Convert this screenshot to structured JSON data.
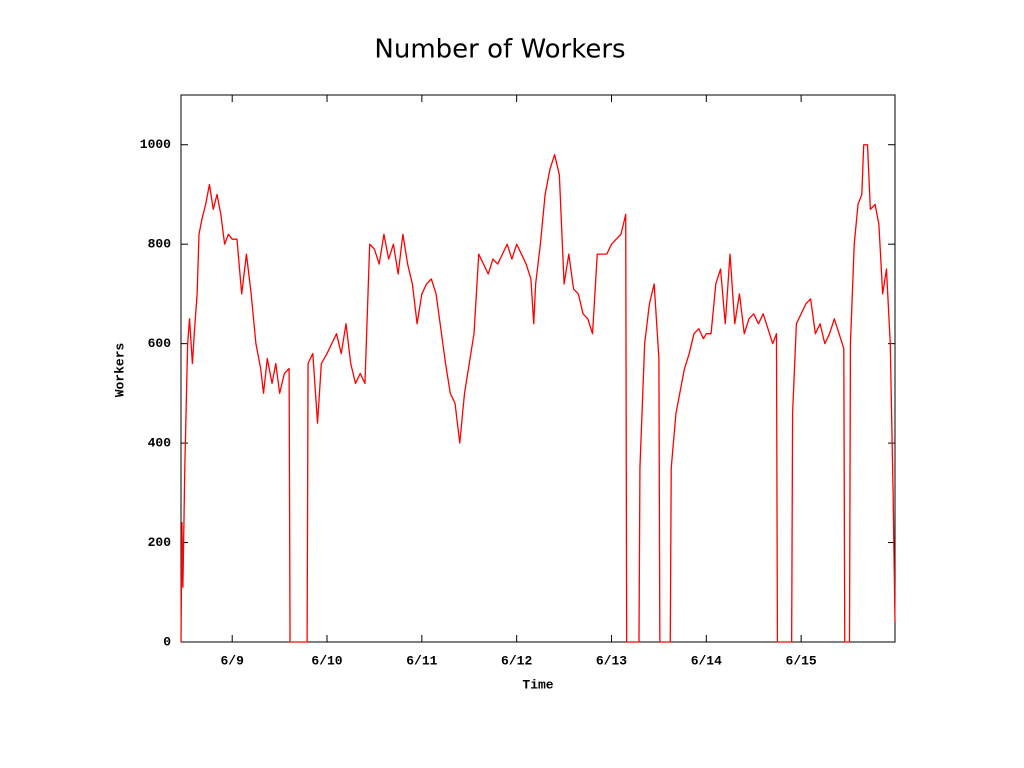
{
  "chart_data": {
    "type": "line",
    "title": "Number of Workers",
    "x_label": "Time",
    "y_label": "Workers",
    "color": "#ff0000",
    "x": [
      8.46,
      8.47,
      8.48,
      8.5,
      8.53,
      8.55,
      8.58,
      8.6,
      8.63,
      8.65,
      8.68,
      8.72,
      8.76,
      8.8,
      8.84,
      8.88,
      8.92,
      8.96,
      9.0,
      9.05,
      9.1,
      9.15,
      9.2,
      9.25,
      9.3,
      9.33,
      9.37,
      9.42,
      9.46,
      9.5,
      9.55,
      9.6,
      9.61,
      9.79,
      9.8,
      9.85,
      9.9,
      9.94,
      10.0,
      10.05,
      10.1,
      10.15,
      10.2,
      10.25,
      10.3,
      10.35,
      10.4,
      10.45,
      10.5,
      10.55,
      10.6,
      10.65,
      10.7,
      10.75,
      10.8,
      10.85,
      10.9,
      10.95,
      11.0,
      11.05,
      11.1,
      11.15,
      11.2,
      11.25,
      11.3,
      11.35,
      11.4,
      11.45,
      11.5,
      11.55,
      11.6,
      11.65,
      11.7,
      11.75,
      11.8,
      11.85,
      11.9,
      11.95,
      12.0,
      12.05,
      12.1,
      12.15,
      12.18,
      12.2,
      12.25,
      12.3,
      12.35,
      12.4,
      12.45,
      12.5,
      12.55,
      12.6,
      12.65,
      12.7,
      12.75,
      12.8,
      12.85,
      12.9,
      12.95,
      13.0,
      13.05,
      13.1,
      13.15,
      13.16,
      13.29,
      13.3,
      13.35,
      13.4,
      13.45,
      13.5,
      13.51,
      13.62,
      13.63,
      13.68,
      13.72,
      13.77,
      13.82,
      13.87,
      13.92,
      13.97,
      14.0,
      14.05,
      14.1,
      14.15,
      14.2,
      14.25,
      14.3,
      14.35,
      14.4,
      14.45,
      14.5,
      14.55,
      14.6,
      14.65,
      14.7,
      14.74,
      14.75,
      14.9,
      14.91,
      14.95,
      15.0,
      15.05,
      15.1,
      15.15,
      15.2,
      15.25,
      15.3,
      15.35,
      15.4,
      15.45,
      15.46,
      15.51,
      15.52,
      15.56,
      15.6,
      15.64,
      15.66,
      15.7,
      15.73,
      15.78,
      15.82,
      15.86,
      15.9,
      15.94,
      15.97,
      15.99
    ],
    "values": [
      0,
      240,
      110,
      350,
      600,
      650,
      560,
      620,
      700,
      820,
      850,
      880,
      920,
      870,
      900,
      860,
      800,
      820,
      810,
      810,
      700,
      780,
      700,
      600,
      550,
      500,
      570,
      520,
      560,
      500,
      540,
      550,
      0,
      0,
      560,
      580,
      440,
      560,
      580,
      600,
      620,
      580,
      640,
      560,
      520,
      540,
      520,
      800,
      790,
      760,
      820,
      770,
      800,
      740,
      820,
      760,
      720,
      640,
      700,
      720,
      730,
      700,
      630,
      560,
      500,
      480,
      400,
      500,
      560,
      620,
      780,
      760,
      740,
      770,
      760,
      780,
      800,
      770,
      800,
      780,
      760,
      730,
      640,
      720,
      800,
      900,
      950,
      980,
      940,
      720,
      780,
      710,
      700,
      660,
      650,
      620,
      780,
      780,
      780,
      800,
      810,
      820,
      860,
      0,
      0,
      350,
      600,
      680,
      720,
      570,
      0,
      0,
      350,
      460,
      500,
      550,
      580,
      620,
      630,
      610,
      620,
      620,
      720,
      750,
      640,
      780,
      640,
      700,
      620,
      650,
      660,
      640,
      660,
      630,
      600,
      620,
      0,
      0,
      460,
      640,
      660,
      680,
      690,
      620,
      640,
      600,
      620,
      650,
      620,
      590,
      0,
      0,
      600,
      800,
      880,
      900,
      1000,
      1000,
      870,
      880,
      840,
      700,
      750,
      600,
      300,
      40
    ],
    "xlim": [
      8.46,
      15.99
    ],
    "xticks": [
      {
        "value": 9,
        "label": "6/9"
      },
      {
        "value": 10,
        "label": "6/10"
      },
      {
        "value": 11,
        "label": "6/11"
      },
      {
        "value": 12,
        "label": "6/12"
      },
      {
        "value": 13,
        "label": "6/13"
      },
      {
        "value": 14,
        "label": "6/14"
      },
      {
        "value": 15,
        "label": "6/15"
      }
    ],
    "ylim": [
      0,
      1100
    ],
    "yticks": [
      0,
      200,
      400,
      600,
      800,
      1000
    ]
  }
}
